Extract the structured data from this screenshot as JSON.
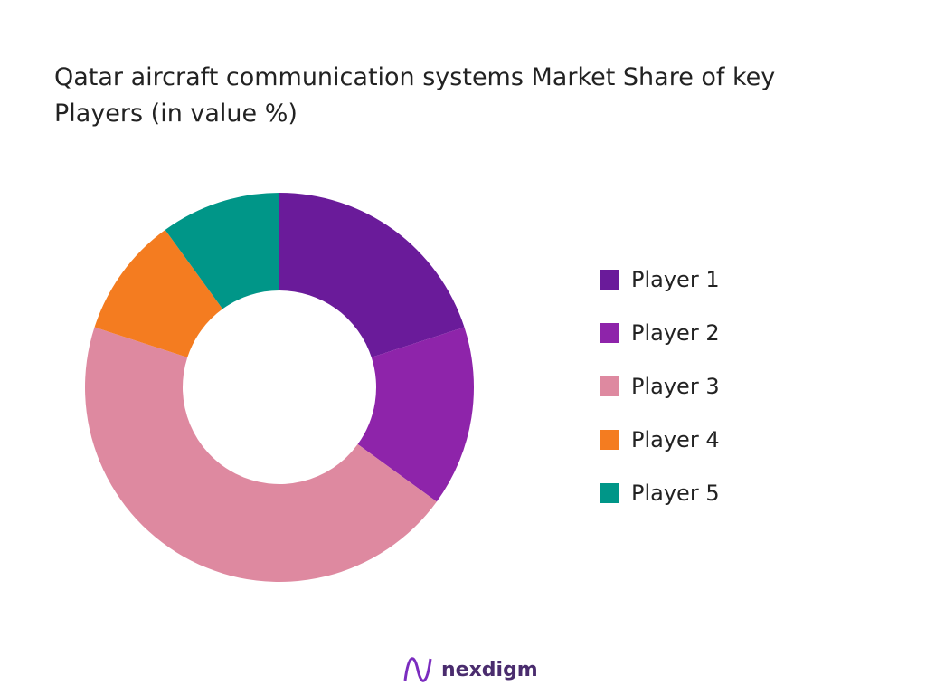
{
  "chart_data": {
    "type": "pie",
    "donut": true,
    "title": "Qatar aircraft communication systems Market Share of key Players (in value %)",
    "categories": [
      "Player 1",
      "Player 2",
      "Player 3",
      "Player 4",
      "Player 5"
    ],
    "values": [
      20,
      15,
      45,
      10,
      10
    ],
    "colors": [
      "#6a1b9a",
      "#8e24aa",
      "#de89a0",
      "#f47c20",
      "#009688"
    ],
    "legend": "right"
  },
  "brand": "nexdigm"
}
